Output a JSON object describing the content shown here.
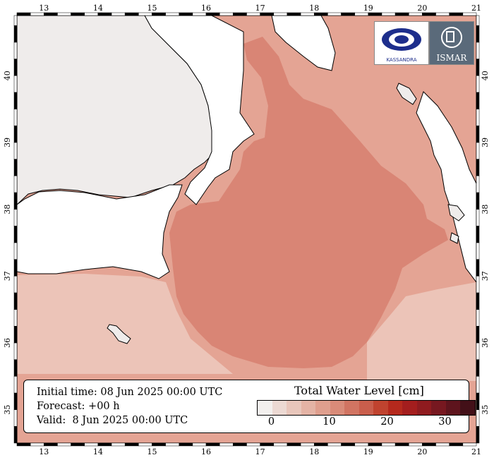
{
  "map": {
    "lon_ticks": [
      "13",
      "14",
      "15",
      "16",
      "17",
      "18",
      "19",
      "20",
      "21"
    ],
    "lat_ticks": [
      "35",
      "36",
      "37",
      "38",
      "39",
      "40"
    ],
    "lon_range": [
      12.5,
      21.0
    ],
    "lat_range": [
      34.5,
      40.9
    ],
    "land_color": "#efeceb",
    "sea_color": "#e4a494",
    "sea_core_color": "#d98575",
    "sea_edge_color": "#ecc4b8",
    "coast_color": "#000000"
  },
  "info": {
    "initial_time": "Initial time: 08 Jun 2025 00:00 UTC",
    "forecast": "Forecast: +00 h",
    "valid": "Valid:  8 Jun 2025 00:00 UTC"
  },
  "legend": {
    "title": "Total Water Level [cm]",
    "labels": [
      "0",
      "10",
      "20",
      "30"
    ],
    "colors": [
      "#f3f0ee",
      "#ecd9d3",
      "#e8c6bb",
      "#e4b3a5",
      "#df9f8e",
      "#d98b79",
      "#d17462",
      "#c95e4c",
      "#c0432f",
      "#b5291d",
      "#a41e1e",
      "#8f1b1f",
      "#771820",
      "#5e141d",
      "#431018"
    ]
  },
  "logos": {
    "left_name": "KASSANDRA",
    "right_name": "ISMAR"
  }
}
